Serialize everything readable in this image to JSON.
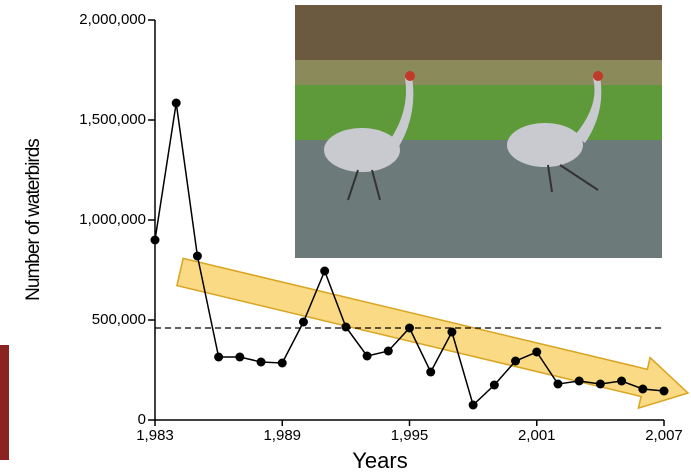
{
  "chart_data": {
    "type": "line",
    "ylabel": "Number of waterbirds",
    "xlabel": "Years",
    "x": [
      1983,
      1984,
      1985,
      1986,
      1987,
      1988,
      1989,
      1990,
      1991,
      1992,
      1993,
      1994,
      1995,
      1996,
      1997,
      1998,
      1999,
      2000,
      2001,
      2002,
      2003,
      2004,
      2005,
      2006,
      2007
    ],
    "series": [
      {
        "color": "#000000",
        "values": [
          900000,
          1585000,
          820000,
          315000,
          315000,
          290000,
          285000,
          490000,
          745000,
          465000,
          320000,
          345000,
          460000,
          240000,
          440000,
          75000,
          175000,
          295000,
          340000,
          180000,
          195000,
          180000,
          195000,
          155000,
          145000
        ]
      }
    ],
    "xlim": [
      1983,
      2007
    ],
    "xticks": [
      {
        "value": 1983,
        "label": "1,983"
      },
      {
        "value": 1989,
        "label": "1,989"
      },
      {
        "value": 1995,
        "label": "1,995"
      },
      {
        "value": 2001,
        "label": "2,001"
      },
      {
        "value": 2007,
        "label": "2,007"
      }
    ],
    "ylim": [
      0,
      2000000
    ],
    "yticks": [
      0,
      {
        "value": 500000,
        "label": "500,000"
      },
      {
        "value": 1000000,
        "label": "1,000,000"
      },
      {
        "value": 1500000,
        "label": "1,500,000"
      },
      {
        "value": 2000000,
        "label": "2,000,000"
      }
    ],
    "reference_line": 460000
  }
}
